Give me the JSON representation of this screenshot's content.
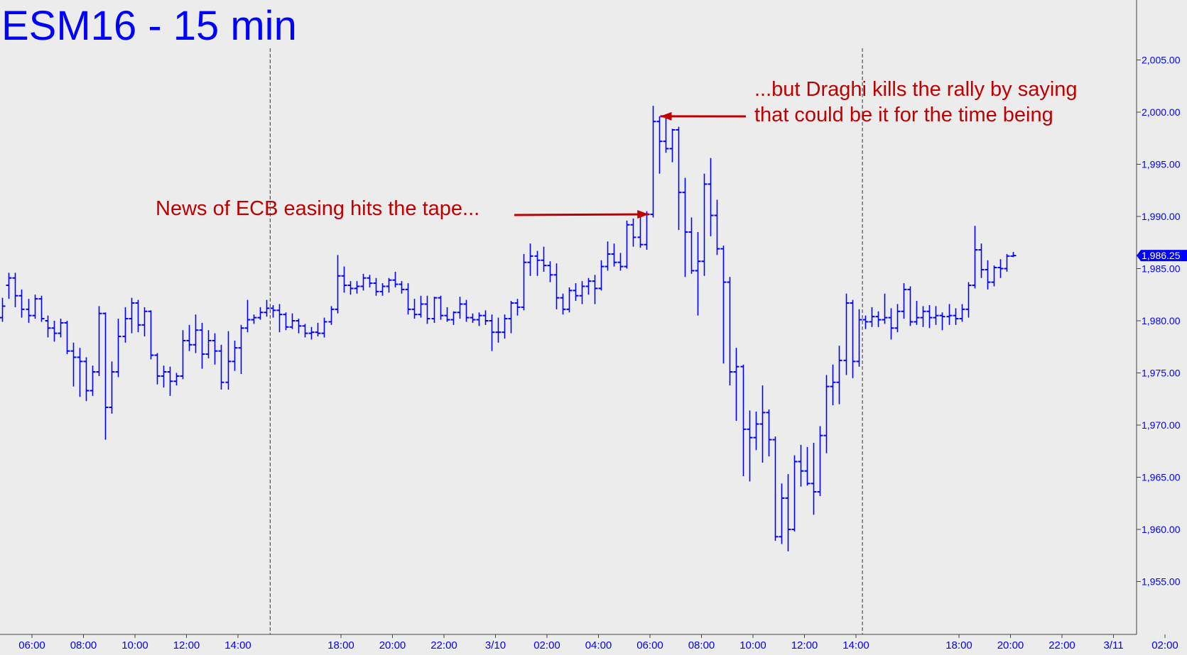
{
  "chart_data": {
    "type": "ohlc",
    "title": "ESM16 - 15 min",
    "ylim": [
      1950,
      2010
    ],
    "y_ticks": [
      "2,005.00",
      "2,000.00",
      "1,995.00",
      "1,990.00",
      "1,985.00",
      "1,980.00",
      "1,975.00",
      "1,970.00",
      "1,965.00",
      "1,960.00",
      "1,955.00"
    ],
    "y_tick_values": [
      2005,
      2000,
      1995,
      1990,
      1985,
      1980,
      1975,
      1970,
      1965,
      1960,
      1955
    ],
    "x_ticks": [
      "06:00",
      "08:00",
      "10:00",
      "12:00",
      "14:00",
      "18:00",
      "20:00",
      "22:00",
      "3/10",
      "02:00",
      "04:00",
      "06:00",
      "08:00",
      "10:00",
      "12:00",
      "14:00",
      "18:00",
      "20:00",
      "22:00",
      "3/11",
      "02:00"
    ],
    "x_tick_hours": [
      6,
      8,
      10,
      12,
      14,
      18,
      20,
      22,
      24,
      26,
      28,
      30,
      32,
      34,
      36,
      38,
      42,
      44,
      46,
      48,
      50
    ],
    "session_breaks_hours": [
      15.25,
      38.25
    ],
    "last_price": 1986.25,
    "last_price_label": "1,986.25",
    "colors": {
      "bars": "#0000ff",
      "annotation": "#c00000",
      "title": "#0000ff",
      "axis_text": "#0000ff",
      "background": "#ececec"
    },
    "annotations": [
      {
        "lines": [
          "News of ECB easing hits the tape..."
        ],
        "arrow_to": {
          "hour": 29.95,
          "price": 1990.2
        }
      },
      {
        "lines": [
          "...but Draghi kills the rally by saying",
          "that could be it for the time being"
        ],
        "arrow_to": {
          "hour": 30.4,
          "price": 1999.6
        }
      }
    ],
    "bars": [
      [
        4.6,
        1980.6,
        1981.7,
        1979.7,
        1980.2
      ],
      [
        4.85,
        1980.3,
        1982.2,
        1979.9,
        1981.4
      ],
      [
        5.1,
        1983.4,
        1984.6,
        1982.1,
        1984.1
      ],
      [
        5.35,
        1984.1,
        1984.6,
        1981.3,
        1982.4
      ],
      [
        5.6,
        1982.4,
        1983.0,
        1980.3,
        1981.1
      ],
      [
        5.85,
        1981.1,
        1982.1,
        1979.8,
        1980.5
      ],
      [
        6.1,
        1980.5,
        1982.5,
        1980.2,
        1982.1
      ],
      [
        6.35,
        1982.1,
        1982.4,
        1979.9,
        1980.2
      ],
      [
        6.6,
        1980.0,
        1980.5,
        1978.4,
        1979.3
      ],
      [
        6.85,
        1979.3,
        1980.0,
        1978.0,
        1978.8
      ],
      [
        7.1,
        1978.8,
        1980.2,
        1978.4,
        1979.8
      ],
      [
        7.35,
        1979.8,
        1980.0,
        1976.8,
        1977.1
      ],
      [
        7.6,
        1977.1,
        1977.9,
        1973.7,
        1976.5
      ],
      [
        7.85,
        1976.5,
        1977.4,
        1972.7,
        1976.1
      ],
      [
        8.1,
        1976.1,
        1976.5,
        1972.3,
        1973.3
      ],
      [
        8.35,
        1973.3,
        1975.7,
        1972.8,
        1975.1
      ],
      [
        8.6,
        1975.1,
        1981.4,
        1974.7,
        1980.7
      ],
      [
        8.85,
        1980.7,
        1980.8,
        1968.6,
        1971.7
      ],
      [
        9.1,
        1971.7,
        1976.1,
        1971.1,
        1975.1
      ],
      [
        9.35,
        1975.1,
        1980.2,
        1974.6,
        1978.5
      ],
      [
        9.6,
        1978.5,
        1981.3,
        1977.9,
        1980.2
      ],
      [
        9.85,
        1980.2,
        1982.2,
        1978.8,
        1981.7
      ],
      [
        10.1,
        1981.7,
        1982.0,
        1978.9,
        1979.6
      ],
      [
        10.35,
        1979.6,
        1981.3,
        1978.5,
        1980.9
      ],
      [
        10.6,
        1980.9,
        1981.0,
        1976.3,
        1976.7
      ],
      [
        10.85,
        1976.7,
        1976.9,
        1973.9,
        1974.7
      ],
      [
        11.1,
        1974.7,
        1975.7,
        1973.6,
        1975.1
      ],
      [
        11.35,
        1975.1,
        1975.6,
        1972.8,
        1974.2
      ],
      [
        11.6,
        1974.2,
        1975.0,
        1973.8,
        1974.7
      ],
      [
        11.85,
        1974.7,
        1979.1,
        1974.4,
        1978.1
      ],
      [
        12.1,
        1978.1,
        1979.6,
        1977.1,
        1977.7
      ],
      [
        12.35,
        1977.7,
        1980.6,
        1976.9,
        1979.1
      ],
      [
        12.6,
        1979.1,
        1979.8,
        1975.4,
        1976.8
      ],
      [
        12.85,
        1976.8,
        1979.1,
        1976.4,
        1978.1
      ],
      [
        13.1,
        1978.1,
        1978.8,
        1975.8,
        1977.1
      ],
      [
        13.35,
        1977.1,
        1977.7,
        1973.4,
        1974.1
      ],
      [
        13.6,
        1974.1,
        1979.0,
        1973.4,
        1976.1
      ],
      [
        13.85,
        1976.1,
        1978.1,
        1975.2,
        1977.4
      ],
      [
        14.1,
        1977.4,
        1979.6,
        1974.9,
        1979.3
      ],
      [
        14.35,
        1979.3,
        1982.0,
        1978.9,
        1980.1
      ],
      [
        14.6,
        1980.1,
        1980.6,
        1979.7,
        1980.3
      ],
      [
        14.85,
        1980.3,
        1981.3,
        1980.1,
        1980.8
      ],
      [
        15.1,
        1980.8,
        1982.0,
        1980.4,
        1981.2
      ],
      [
        15.35,
        1981.2,
        1981.5,
        1980.3,
        1981.0
      ],
      [
        15.6,
        1981.0,
        1981.6,
        1978.9,
        1980.6
      ],
      [
        15.85,
        1980.6,
        1980.8,
        1979.1,
        1979.4
      ],
      [
        16.1,
        1979.4,
        1980.7,
        1979.2,
        1980.0
      ],
      [
        16.35,
        1980.0,
        1980.2,
        1978.8,
        1979.5
      ],
      [
        16.6,
        1979.5,
        1979.7,
        1978.4,
        1978.8
      ],
      [
        16.85,
        1978.8,
        1979.4,
        1978.2,
        1978.9
      ],
      [
        17.1,
        1978.9,
        1979.8,
        1978.5,
        1978.8
      ],
      [
        17.35,
        1978.8,
        1980.3,
        1978.4,
        1979.9
      ],
      [
        17.6,
        1979.9,
        1981.4,
        1979.6,
        1981.1
      ],
      [
        17.85,
        1981.1,
        1986.3,
        1980.7,
        1984.3
      ],
      [
        18.1,
        1984.3,
        1985.2,
        1982.7,
        1983.4
      ],
      [
        18.35,
        1983.4,
        1983.8,
        1982.5,
        1983.1
      ],
      [
        18.6,
        1983.1,
        1983.8,
        1982.6,
        1983.3
      ],
      [
        18.85,
        1983.3,
        1984.5,
        1982.9,
        1984.1
      ],
      [
        19.1,
        1984.1,
        1984.4,
        1983.2,
        1983.6
      ],
      [
        19.35,
        1983.6,
        1984.1,
        1982.4,
        1982.8
      ],
      [
        19.6,
        1982.8,
        1983.6,
        1982.4,
        1983.3
      ],
      [
        19.85,
        1983.3,
        1984.1,
        1982.7,
        1983.9
      ],
      [
        20.1,
        1983.9,
        1984.7,
        1983.2,
        1983.5
      ],
      [
        20.35,
        1983.5,
        1983.8,
        1982.6,
        1983.0
      ],
      [
        20.6,
        1983.0,
        1983.6,
        1980.6,
        1981.1
      ],
      [
        20.85,
        1981.1,
        1982.1,
        1980.2,
        1980.6
      ],
      [
        21.1,
        1980.6,
        1982.4,
        1980.3,
        1981.6
      ],
      [
        21.35,
        1981.6,
        1982.4,
        1979.7,
        1980.2
      ],
      [
        21.6,
        1980.2,
        1982.3,
        1979.8,
        1982.2
      ],
      [
        21.85,
        1982.2,
        1982.4,
        1980.1,
        1980.5
      ],
      [
        22.1,
        1980.5,
        1981.3,
        1979.9,
        1980.1
      ],
      [
        22.35,
        1980.1,
        1980.9,
        1979.6,
        1980.8
      ],
      [
        22.6,
        1980.8,
        1982.3,
        1980.2,
        1981.6
      ],
      [
        22.85,
        1981.6,
        1982.0,
        1979.9,
        1980.3
      ],
      [
        23.1,
        1980.3,
        1980.7,
        1979.8,
        1980.1
      ],
      [
        23.35,
        1980.1,
        1980.8,
        1979.5,
        1980.5
      ],
      [
        23.6,
        1980.5,
        1981.0,
        1979.6,
        1980.0
      ],
      [
        23.85,
        1980.0,
        1980.6,
        1977.1,
        1978.9
      ],
      [
        24.1,
        1978.9,
        1980.3,
        1977.9,
        1978.9
      ],
      [
        24.35,
        1978.9,
        1980.6,
        1978.3,
        1980.2
      ],
      [
        24.6,
        1980.2,
        1981.9,
        1978.8,
        1981.7
      ],
      [
        24.85,
        1981.7,
        1982.1,
        1980.5,
        1981.3
      ],
      [
        25.1,
        1981.3,
        1986.4,
        1981.0,
        1985.6
      ],
      [
        25.35,
        1985.6,
        1987.4,
        1984.3,
        1986.2
      ],
      [
        25.6,
        1986.2,
        1986.7,
        1984.3,
        1985.8
      ],
      [
        25.85,
        1985.8,
        1987.1,
        1984.7,
        1985.3
      ],
      [
        26.1,
        1985.3,
        1985.7,
        1983.7,
        1984.4
      ],
      [
        26.35,
        1984.4,
        1985.5,
        1981.1,
        1982.2
      ],
      [
        26.6,
        1982.2,
        1982.6,
        1980.6,
        1981.1
      ],
      [
        26.85,
        1981.1,
        1983.2,
        1980.8,
        1982.9
      ],
      [
        27.1,
        1982.9,
        1983.6,
        1981.9,
        1982.4
      ],
      [
        27.35,
        1982.4,
        1983.8,
        1981.6,
        1983.3
      ],
      [
        27.6,
        1983.3,
        1984.1,
        1982.5,
        1983.8
      ],
      [
        27.85,
        1983.8,
        1984.4,
        1981.6,
        1983.1
      ],
      [
        28.1,
        1983.1,
        1985.8,
        1982.9,
        1985.2
      ],
      [
        28.35,
        1985.2,
        1987.6,
        1984.8,
        1986.4
      ],
      [
        28.6,
        1986.4,
        1987.4,
        1985.2,
        1985.6
      ],
      [
        28.85,
        1985.6,
        1986.5,
        1984.8,
        1985.2
      ],
      [
        29.1,
        1985.2,
        1989.6,
        1985.0,
        1989.2
      ],
      [
        29.35,
        1989.2,
        1989.8,
        1987.1,
        1988.0
      ],
      [
        29.6,
        1988.0,
        1990.4,
        1987.0,
        1987.3
      ],
      [
        29.85,
        1987.3,
        1990.5,
        1986.8,
        1990.2
      ],
      [
        30.1,
        1990.2,
        2000.6,
        1989.9,
        1999.1
      ],
      [
        30.35,
        1999.1,
        1999.6,
        1994.1,
        1997.2
      ],
      [
        30.6,
        1997.2,
        1999.8,
        1996.1,
        1996.5
      ],
      [
        30.85,
        1996.5,
        1998.4,
        1995.2,
        1998.3
      ],
      [
        31.1,
        1998.3,
        1998.6,
        1988.7,
        1992.3
      ],
      [
        31.35,
        1992.3,
        1993.7,
        1984.2,
        1988.5
      ],
      [
        31.6,
        1988.5,
        1989.9,
        1984.5,
        1984.8
      ],
      [
        31.85,
        1984.8,
        1988.5,
        1980.5,
        1985.7
      ],
      [
        32.1,
        1985.7,
        1994.1,
        1984.3,
        1993.1
      ],
      [
        32.35,
        1993.1,
        1995.6,
        1988.1,
        1990.1
      ],
      [
        32.6,
        1990.1,
        1991.6,
        1986.3,
        1986.9
      ],
      [
        32.85,
        1986.9,
        1987.2,
        1975.9,
        1983.7
      ],
      [
        33.1,
        1983.7,
        1984.2,
        1973.8,
        1975.1
      ],
      [
        33.35,
        1975.1,
        1977.4,
        1970.4,
        1975.6
      ],
      [
        33.6,
        1975.6,
        1975.8,
        1965.1,
        1969.6
      ],
      [
        33.85,
        1969.6,
        1971.4,
        1964.6,
        1968.8
      ],
      [
        34.1,
        1968.8,
        1971.3,
        1967.6,
        1970.1
      ],
      [
        34.35,
        1970.1,
        1973.8,
        1966.4,
        1971.2
      ],
      [
        34.6,
        1971.2,
        1971.5,
        1967.0,
        1968.6
      ],
      [
        34.85,
        1968.6,
        1968.9,
        1958.9,
        1959.3
      ],
      [
        35.1,
        1959.3,
        1964.4,
        1958.6,
        1963.0
      ],
      [
        35.35,
        1963.0,
        1965.3,
        1957.9,
        1960.0
      ],
      [
        35.6,
        1960.0,
        1967.1,
        1959.8,
        1966.5
      ],
      [
        35.85,
        1966.5,
        1968.1,
        1964.1,
        1965.6
      ],
      [
        36.1,
        1965.6,
        1967.9,
        1964.2,
        1964.4
      ],
      [
        36.35,
        1964.4,
        1968.3,
        1961.4,
        1963.6
      ],
      [
        36.6,
        1963.6,
        1969.9,
        1963.2,
        1969.0
      ],
      [
        36.85,
        1969.0,
        1974.8,
        1967.3,
        1973.7
      ],
      [
        37.1,
        1973.7,
        1975.8,
        1971.9,
        1974.1
      ],
      [
        37.35,
        1974.1,
        1977.6,
        1972.0,
        1976.2
      ],
      [
        37.6,
        1976.2,
        1982.6,
        1974.8,
        1981.7
      ],
      [
        37.85,
        1981.7,
        1982.0,
        1974.5,
        1976.1
      ],
      [
        38.1,
        1976.1,
        1981.1,
        1975.6,
        1980.1
      ],
      [
        38.35,
        1980.1,
        1980.5,
        1979.2,
        1979.9
      ],
      [
        38.6,
        1979.9,
        1981.3,
        1979.4,
        1980.4
      ],
      [
        38.85,
        1980.4,
        1980.9,
        1979.4,
        1980.1
      ],
      [
        39.1,
        1980.1,
        1982.6,
        1979.7,
        1980.3
      ],
      [
        39.35,
        1980.3,
        1981.2,
        1978.2,
        1979.3
      ],
      [
        39.6,
        1979.3,
        1981.6,
        1978.9,
        1980.9
      ],
      [
        39.85,
        1980.9,
        1983.6,
        1980.2,
        1983.0
      ],
      [
        40.1,
        1983.0,
        1983.3,
        1979.5,
        1979.9
      ],
      [
        40.35,
        1979.9,
        1981.9,
        1979.6,
        1980.3
      ],
      [
        40.6,
        1980.3,
        1981.4,
        1979.4,
        1980.9
      ],
      [
        40.85,
        1980.9,
        1981.5,
        1979.3,
        1980.3
      ],
      [
        41.1,
        1980.3,
        1981.4,
        1979.6,
        1980.5
      ],
      [
        41.35,
        1980.5,
        1980.8,
        1979.1,
        1980.4
      ],
      [
        41.6,
        1980.4,
        1981.6,
        1979.6,
        1980.5
      ],
      [
        41.85,
        1980.5,
        1981.2,
        1979.6,
        1980.2
      ],
      [
        42.1,
        1980.2,
        1981.6,
        1979.9,
        1981.1
      ],
      [
        42.35,
        1981.1,
        1983.7,
        1980.3,
        1983.4
      ],
      [
        42.6,
        1983.4,
        1989.1,
        1983.1,
        1986.8
      ],
      [
        42.85,
        1986.8,
        1987.4,
        1984.1,
        1984.9
      ],
      [
        43.1,
        1984.9,
        1985.8,
        1983.0,
        1983.7
      ],
      [
        43.35,
        1983.7,
        1985.3,
        1983.3,
        1985.1
      ],
      [
        43.6,
        1985.1,
        1985.9,
        1984.1,
        1985.0
      ],
      [
        43.85,
        1985.0,
        1986.4,
        1984.7,
        1986.2
      ],
      [
        44.1,
        1986.2,
        1986.6,
        1986.1,
        1986.25
      ]
    ]
  }
}
